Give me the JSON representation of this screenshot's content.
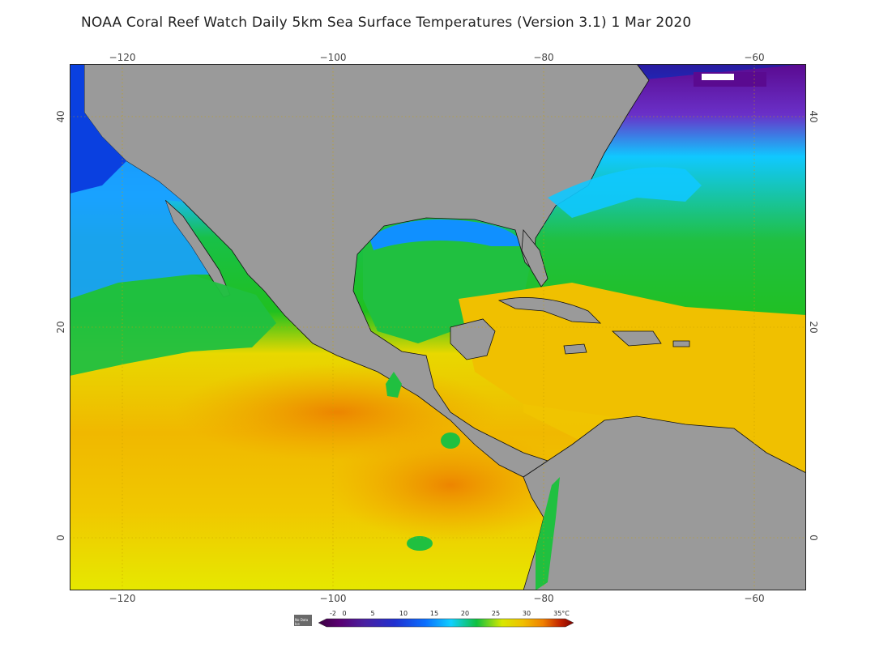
{
  "title": "NOAA Coral Reef Watch Daily 5km Sea Surface Temperatures (Version 3.1)  1 Mar 2020",
  "map": {
    "lon_range": [
      -125,
      -55
    ],
    "lat_range": [
      -5,
      45
    ],
    "lon_ticks": [
      "−120",
      "−100",
      "−80",
      "−60"
    ],
    "lat_ticks": [
      "40",
      "20",
      "0"
    ],
    "colors": {
      "land": "#9a9a9a",
      "coast": "#111111",
      "grid": "#c9a000",
      "frame": "#222222"
    }
  },
  "legend": {
    "nodata_label": "No Data\nIce",
    "scale_labels": [
      "-2",
      "0",
      "5",
      "10",
      "15",
      "20",
      "25",
      "30",
      "35°C"
    ],
    "colors": [
      "#3a0040",
      "#5a0070",
      "#4a20a0",
      "#2030d0",
      "#0a70ff",
      "#10d0ff",
      "#10c040",
      "#d8e800",
      "#f0c000",
      "#f08000",
      "#c02000",
      "#7a0000"
    ]
  }
}
